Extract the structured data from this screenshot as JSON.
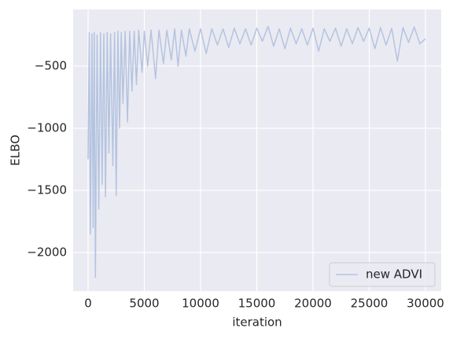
{
  "chart_data": {
    "type": "line",
    "xlabel": "iteration",
    "ylabel": "ELBO",
    "x": [
      0,
      100,
      200,
      350,
      450,
      550,
      650,
      800,
      950,
      1100,
      1250,
      1400,
      1550,
      1700,
      1850,
      2000,
      2200,
      2350,
      2500,
      2650,
      2800,
      2950,
      3100,
      3300,
      3500,
      3700,
      3900,
      4100,
      4300,
      4500,
      4800,
      5000,
      5300,
      5600,
      6000,
      6300,
      6700,
      7000,
      7400,
      7700,
      8000,
      8300,
      8700,
      9000,
      9500,
      10000,
      10500,
      11000,
      11500,
      12000,
      12500,
      13000,
      13500,
      14000,
      14500,
      15000,
      15500,
      16000,
      16500,
      17000,
      17500,
      18000,
      18500,
      19000,
      19500,
      20000,
      20500,
      21000,
      21500,
      22000,
      22500,
      23000,
      23500,
      24000,
      24500,
      25000,
      25500,
      26000,
      26500,
      27000,
      27500,
      28000,
      28500,
      29000,
      29500,
      30000
    ],
    "series": [
      {
        "name": "new ADVI",
        "color": "#b4c4e0",
        "values": [
          -1250,
          -230,
          -1850,
          -240,
          -1800,
          -230,
          -2200,
          -250,
          -1650,
          -230,
          -1450,
          -240,
          -1550,
          -230,
          -1200,
          -240,
          -1300,
          -230,
          -1540,
          -220,
          -1000,
          -230,
          -800,
          -220,
          -950,
          -220,
          -700,
          -220,
          -650,
          -210,
          -550,
          -220,
          -500,
          -210,
          -600,
          -210,
          -480,
          -210,
          -450,
          -200,
          -500,
          -210,
          -420,
          -200,
          -380,
          -200,
          -400,
          -200,
          -330,
          -200,
          -350,
          -195,
          -320,
          -200,
          -330,
          -195,
          -300,
          -180,
          -340,
          -200,
          -360,
          -195,
          -320,
          -200,
          -330,
          -195,
          -380,
          -200,
          -300,
          -195,
          -340,
          -200,
          -320,
          -190,
          -300,
          -195,
          -360,
          -190,
          -330,
          -195,
          -460,
          -190,
          -310,
          -185,
          -320,
          -280
        ]
      }
    ],
    "xlim": [
      -1330,
      31400
    ],
    "ylim": [
      -2310,
      -44
    ],
    "xticks": [
      0,
      5000,
      10000,
      15000,
      20000,
      25000,
      30000
    ],
    "yticks": [
      {
        "value": -500,
        "label": "−500"
      },
      {
        "value": -1000,
        "label": "−1000"
      },
      {
        "value": -1500,
        "label": "−1500"
      },
      {
        "value": -2000,
        "label": "−2000"
      }
    ],
    "grid": true,
    "legend": "lower right"
  }
}
